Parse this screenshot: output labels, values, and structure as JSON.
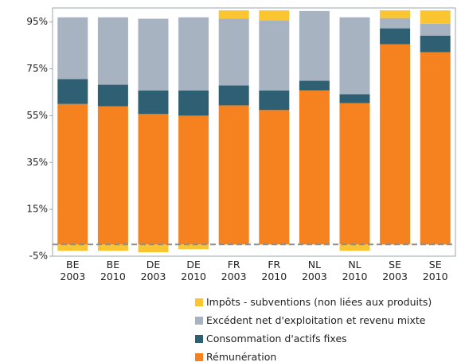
{
  "chart_data": {
    "type": "stacked_bar",
    "categories": [
      "BE 2003",
      "BE 2010",
      "DE 2003",
      "DE 2010",
      "FR 2003",
      "FR 2010",
      "NL 2003",
      "NL 2010",
      "SE 2003",
      "SE 2010"
    ],
    "series": [
      {
        "name": "Rémunération",
        "color": "#f5821f",
        "values": [
          60,
          59,
          55.7,
          55,
          59.4,
          57.4,
          65.8,
          60.4,
          85.5,
          82.1
        ]
      },
      {
        "name": "Consommation d'actifs fixes",
        "color": "#2e5f73",
        "values": [
          10.6,
          9.2,
          10.1,
          10.8,
          8.5,
          8.4,
          4.1,
          3.8,
          6.8,
          7.1
        ]
      },
      {
        "name": "Excédent net d'exploitation et revenu mixte",
        "color": "#a7b3c0",
        "values": [
          26.4,
          28.8,
          30.6,
          31.2,
          28.5,
          29.9,
          29.8,
          32.8,
          4.4,
          5.1
        ]
      },
      {
        "name": "Impôts - subventions (non liées aux produits)",
        "color": "#fbc531",
        "values": [
          -2.7,
          -2.7,
          -3.3,
          -2,
          3.6,
          4.3,
          0,
          -2.7,
          3.3,
          5.7
        ]
      }
    ],
    "ylim": [
      -5,
      101
    ],
    "yticks": [
      {
        "value": -5,
        "label": "-5%"
      },
      {
        "value": 15,
        "label": "15%"
      },
      {
        "value": 35,
        "label": "35%"
      },
      {
        "value": 55,
        "label": "55%"
      },
      {
        "value": 75,
        "label": "75%"
      },
      {
        "value": 95,
        "label": "95%"
      }
    ],
    "zero_line": true
  }
}
